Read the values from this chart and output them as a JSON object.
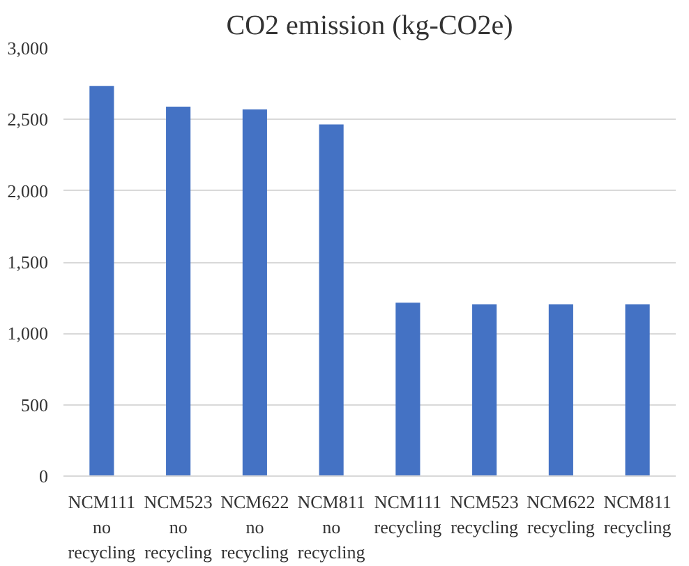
{
  "chart_data": {
    "type": "bar",
    "title": "CO2 emission (kg-CO2e)",
    "categories": [
      "NCM111\nno\nrecycling",
      "NCM523\nno\nrecycling",
      "NCM622\nno\nrecycling",
      "NCM811\nno\nrecycling",
      "NCM111\nrecycling",
      "NCM523\nrecycling",
      "NCM622\nrecycling",
      "NCM811\nrecycling"
    ],
    "values": [
      2735,
      2590,
      2570,
      2465,
      1215,
      1205,
      1205,
      1205
    ],
    "color": "#4472c4",
    "ylim": [
      0,
      3000
    ],
    "yticks": [
      {
        "value": 0,
        "label": "0"
      },
      {
        "value": 500,
        "label": "500"
      },
      {
        "value": 1000,
        "label": "1,000"
      },
      {
        "value": 1500,
        "label": "1,500"
      },
      {
        "value": 2000,
        "label": "2,000"
      },
      {
        "value": 2500,
        "label": "2,500"
      },
      {
        "value": 3000,
        "label": "3,000"
      }
    ],
    "grid": "y"
  }
}
